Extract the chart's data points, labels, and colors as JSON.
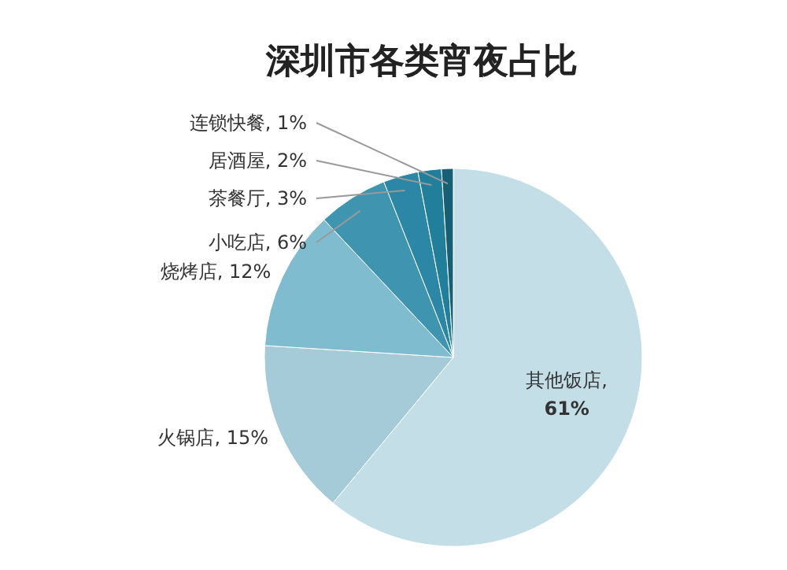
{
  "chart_data": {
    "type": "pie",
    "title": "深圳市各类宵夜占比",
    "categories": [
      "其他饭店",
      "火锅店",
      "烧烤店",
      "小吃店",
      "茶餐厅",
      "居酒屋",
      "连锁快餐"
    ],
    "values": [
      61,
      15,
      12,
      6,
      3,
      2,
      1
    ],
    "value_labels": [
      ",\n61%",
      ", 15%",
      ", 12%",
      ", 6%",
      ", 3%",
      ", 2%",
      ", 1%"
    ],
    "colors": [
      "#c3dee7",
      "#a5cbd9",
      "#80bccf",
      "#3f95b0",
      "#2b87a5",
      "#217f9b",
      "#175f75"
    ]
  }
}
